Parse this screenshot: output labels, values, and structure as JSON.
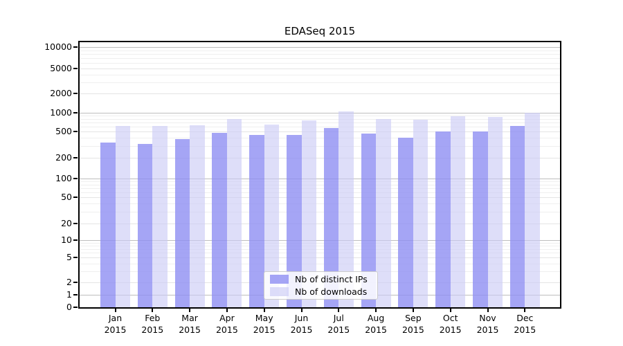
{
  "chart_data": {
    "type": "bar",
    "title": "EDASeq 2015",
    "categories": [
      "Jan",
      "Feb",
      "Mar",
      "Apr",
      "May",
      "Jun",
      "Jul",
      "Aug",
      "Sep",
      "Oct",
      "Nov",
      "Dec"
    ],
    "year_line": "2015",
    "series": [
      {
        "name": "Nb of distinct IPs",
        "fill": "#8f8ff2",
        "alpha": 0.8,
        "values": [
          340,
          325,
          385,
          480,
          440,
          440,
          570,
          465,
          405,
          500,
          505,
          615
        ]
      },
      {
        "name": "Nb of downloads",
        "fill": "#c9c9f5",
        "alpha": 0.62,
        "values": [
          620,
          610,
          635,
          800,
          650,
          760,
          1040,
          800,
          780,
          880,
          860,
          1000
        ]
      }
    ],
    "yticks": [
      0,
      1,
      2,
      5,
      10,
      20,
      50,
      100,
      200,
      500,
      1000,
      2000,
      5000,
      10000
    ],
    "yscale": "log-like (0 baseline, decades compressed near bottom)",
    "ylim": [
      0,
      13000
    ],
    "grid": "on",
    "legend_position": "lower center",
    "colors": {
      "major_gridline": "#bdbdbd",
      "minor_gridline": "#efefef",
      "labeled_gridline": "#e4e4e4",
      "axis": "#000000"
    }
  }
}
